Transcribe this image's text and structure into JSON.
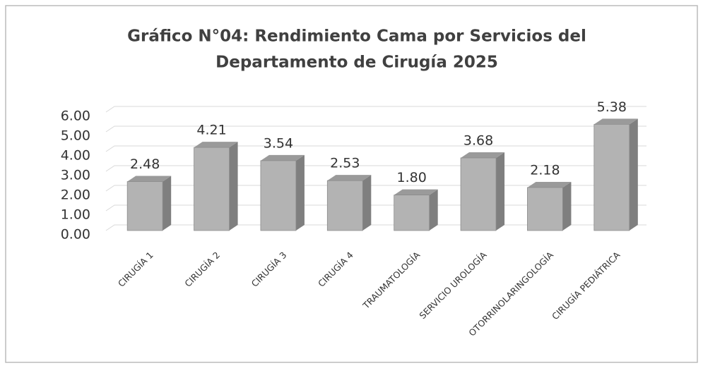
{
  "chart_data": {
    "type": "bar3d",
    "title": [
      "Gráfico N°04: Rendimiento Cama por Servicios del",
      "Departamento de Cirugía 2025"
    ],
    "categories": [
      "CIRUGÍA 1",
      "CIRUGÍA 2",
      "CIRUGÍA 3",
      "CIRUGÍA 4",
      "TRAUMATOLOGÍA",
      "SERVICIO UROLOGÍA",
      "OTORRINOLARINGOLOGÍA",
      "CIRUGÍA PEDIÁTRICA"
    ],
    "values": [
      2.48,
      4.21,
      3.54,
      2.53,
      1.8,
      3.68,
      2.18,
      5.38
    ],
    "value_labels": [
      "2.48",
      "4.21",
      "3.54",
      "2.53",
      "1.80",
      "3.68",
      "2.18",
      "5.38"
    ],
    "color": "#b3b3b3",
    "ylim": [
      0,
      6
    ],
    "yticks": [
      {
        "value": 0,
        "label": "0.00"
      },
      {
        "value": 1,
        "label": "1.00"
      },
      {
        "value": 2,
        "label": "2.00"
      },
      {
        "value": 3,
        "label": "3.00"
      },
      {
        "value": 4,
        "label": "4.00"
      },
      {
        "value": 5,
        "label": "5.00"
      },
      {
        "value": 6,
        "label": "6.00"
      }
    ],
    "grid": true
  }
}
